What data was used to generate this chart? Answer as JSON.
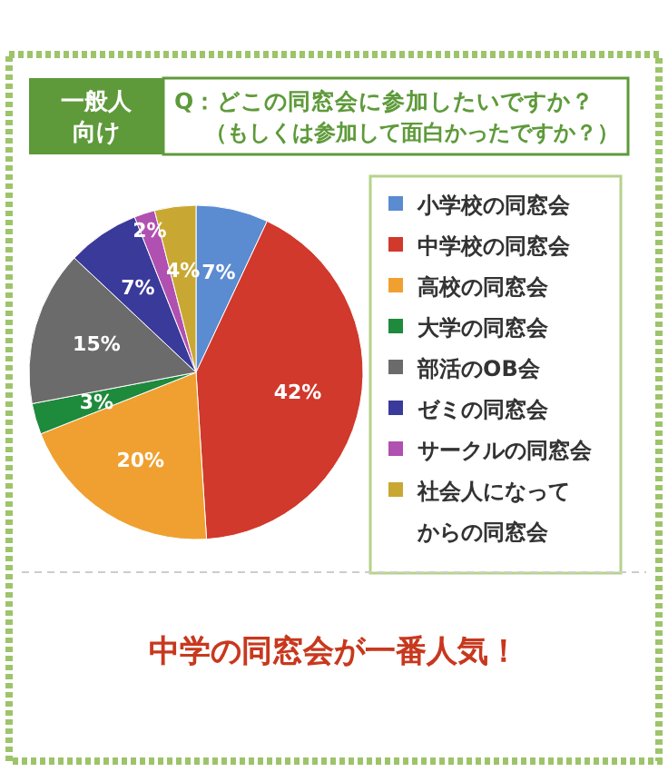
{
  "chart_data": {
    "type": "pie",
    "subtitle": "一般人向け",
    "title": "Q：どこの同窓会に参加したいですか？（もしくは参加して面白かったですか？）",
    "categories": [
      "小学校の同窓会",
      "中学校の同窓会",
      "高校の同窓会",
      "大学の同窓会",
      "部活のOB会",
      "ゼミの同窓会",
      "サークルの同窓会",
      "社会人になってからの同窓会"
    ],
    "values": [
      7,
      42,
      20,
      3,
      15,
      7,
      2,
      4
    ],
    "colors": [
      "#5b8bd0",
      "#d0392b",
      "#f0a030",
      "#1e8a3c",
      "#6b6b6b",
      "#3a3a9a",
      "#b050b0",
      "#c8a832"
    ],
    "value_labels": [
      "7%",
      "42%",
      "20%",
      "3%",
      "15%",
      "7%",
      "2%",
      "4%"
    ],
    "legend": "right",
    "annotations": [
      "中学の同窓会が一番人気！"
    ]
  }
}
